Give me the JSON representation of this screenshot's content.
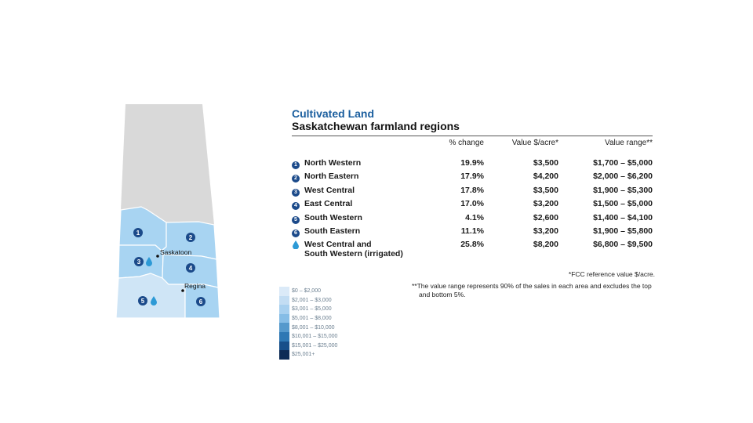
{
  "map": {
    "city_labels": [
      "Saskatoon",
      "Regina"
    ],
    "region_numbers": [
      "1",
      "2",
      "3",
      "4",
      "5",
      "6"
    ],
    "colors": {
      "north": "#d9d9d9",
      "region_light": "#cfe5f6",
      "region_mid": "#a8d4f2",
      "border": "#ffffff",
      "badge": "#1b4a8a",
      "drop": "#2d9ad6"
    }
  },
  "legend": {
    "items": [
      {
        "label": "$0 – $2,000",
        "color": "#dbeaf8"
      },
      {
        "label": "$2,001 – $3,000",
        "color": "#c3ddf3"
      },
      {
        "label": "$3,001 – $5,000",
        "color": "#a8d0ef"
      },
      {
        "label": "$5,001 – $8,000",
        "color": "#86bde6"
      },
      {
        "label": "$8,001 – $10,000",
        "color": "#5599cc"
      },
      {
        "label": "$10,001 – $15,000",
        "color": "#2e78b4"
      },
      {
        "label": "$15,001 – $25,000",
        "color": "#174f8a"
      },
      {
        "label": "$25,001+",
        "color": "#0d2b55"
      }
    ]
  },
  "panel": {
    "title": "Cultivated Land",
    "subtitle": "Saskatchewan farmland regions",
    "headers": {
      "change": "% change",
      "value": "Value $/acre*",
      "range": "Value range**"
    },
    "rows": [
      {
        "num": "1",
        "region": "North Western",
        "change": "19.9%",
        "value": "$3,500",
        "range": "$1,700 – $5,000"
      },
      {
        "num": "2",
        "region": "North Eastern",
        "change": "17.9%",
        "value": "$4,200",
        "range": "$2,000 – $6,200"
      },
      {
        "num": "3",
        "region": "West Central",
        "change": "17.8%",
        "value": "$3,500",
        "range": "$1,900 – $5,300"
      },
      {
        "num": "4",
        "region": "East Central",
        "change": "17.0%",
        "value": "$3,200",
        "range": "$1,500 – $5,000"
      },
      {
        "num": "5",
        "region": "South Western",
        "change": "4.1%",
        "value": "$2,600",
        "range": "$1,400 – $4,100"
      },
      {
        "num": "6",
        "region": "South Eastern",
        "change": "11.1%",
        "value": "$3,200",
        "range": "$1,900 – $5,800"
      }
    ],
    "irrigated": {
      "region_line1": "West Central and",
      "region_line2": "South Western (irrigated)",
      "change": "25.8%",
      "value": "$8,200",
      "range": "$6,800 – $9,500"
    }
  },
  "notes": {
    "note1": "*FCC reference value $/acre.",
    "note2": "**The value range represents 90% of the sales in each area and excludes the top and bottom 5%."
  }
}
